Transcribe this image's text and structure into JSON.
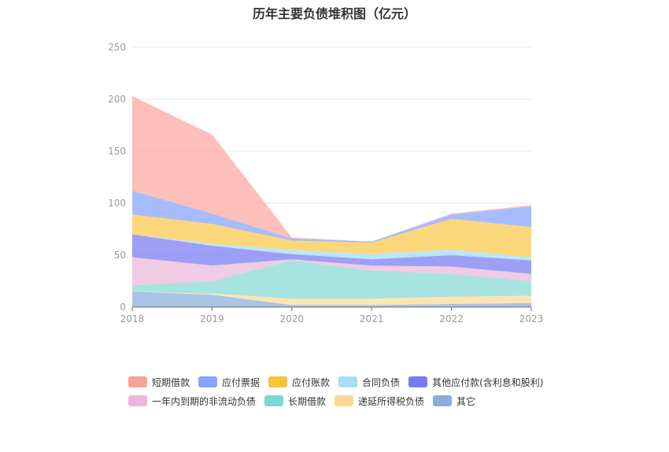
{
  "chart_data": {
    "type": "area",
    "stacked": true,
    "title": "历年主要负债堆积图（亿元）",
    "x": [
      "2018",
      "2019",
      "2020",
      "2021",
      "2022",
      "2023"
    ],
    "yticks": [
      "0",
      "50",
      "100",
      "150",
      "200",
      "250"
    ],
    "ylim": [
      0,
      250
    ],
    "grid": true,
    "legend_position": "bottom",
    "series": [
      {
        "name": "其它",
        "color": "#8eb0dc",
        "values": [
          15,
          12,
          2,
          2,
          3,
          4
        ]
      },
      {
        "name": "递延所得税负债",
        "color": "#fddb9a",
        "values": [
          0,
          1,
          6,
          6,
          7,
          7
        ]
      },
      {
        "name": "长期借款",
        "color": "#89d9d4",
        "values": [
          6,
          12,
          37,
          27,
          22,
          14
        ]
      },
      {
        "name": "一年内到期的非流动负债",
        "color": "#ebbad9",
        "values": [
          27,
          15,
          1,
          5,
          7,
          7
        ]
      },
      {
        "name": "其他应付款(含利息和股利)",
        "color": "#7c7ef2",
        "values": [
          22,
          19,
          5,
          6,
          11,
          13
        ]
      },
      {
        "name": "合同负债",
        "color": "#a3dff8",
        "values": [
          0,
          2,
          4,
          5,
          5,
          3
        ]
      },
      {
        "name": "应付账款",
        "color": "#fbc94e",
        "values": [
          19,
          19,
          9,
          11,
          30,
          29
        ]
      },
      {
        "name": "应付票据",
        "color": "#88a6fd",
        "values": [
          23,
          10,
          2,
          1,
          4,
          20
        ]
      },
      {
        "name": "短期借款",
        "color": "#fba9a2",
        "values": [
          91,
          76,
          1,
          0,
          1,
          1
        ]
      }
    ]
  },
  "legend": {
    "rows": [
      [
        {
          "name": "短期借款",
          "color": "#f8a19a"
        },
        {
          "name": "应付票据",
          "color": "#87a4fb"
        },
        {
          "name": "应付账款",
          "color": "#f8c23b"
        },
        {
          "name": "合同负债",
          "color": "#a6def6"
        },
        {
          "name": "其他应付款(含利息和股利)",
          "color": "#7a7af0"
        }
      ],
      [
        {
          "name": "一年内到期的非流动负债",
          "color": "#ecb6dc"
        },
        {
          "name": "长期借款",
          "color": "#7ed7d3"
        },
        {
          "name": "递延所得税负债",
          "color": "#fdd69c"
        },
        {
          "name": "其它",
          "color": "#8aaddb"
        }
      ]
    ]
  }
}
